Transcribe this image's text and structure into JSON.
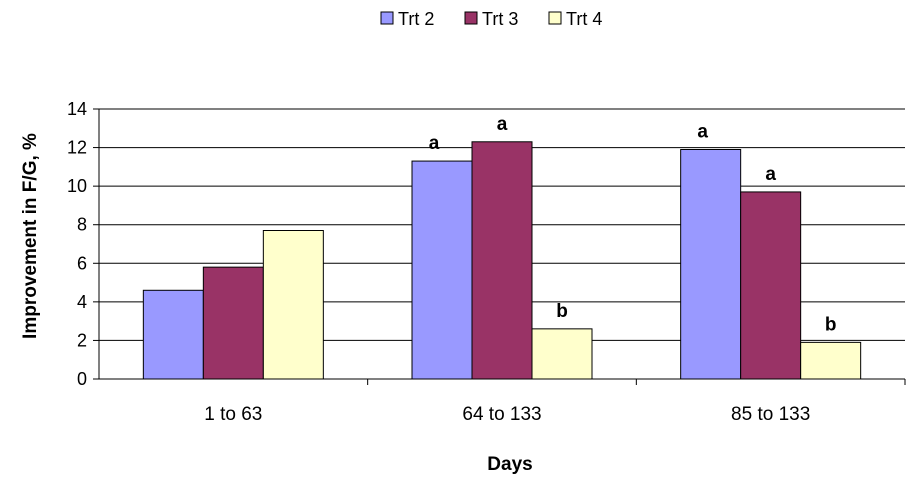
{
  "chart_data": {
    "type": "bar",
    "title": "",
    "xlabel": "Days",
    "ylabel": "Improvement in F/G, %",
    "categories": [
      "1 to 63",
      "64 to 133",
      "85 to 133"
    ],
    "series": [
      {
        "name": "Trt 2",
        "color": "#9999ff",
        "values": [
          4.6,
          11.3,
          11.9
        ],
        "labels": [
          "",
          "a",
          "a"
        ]
      },
      {
        "name": "Trt 3",
        "color": "#993366",
        "values": [
          5.8,
          12.3,
          9.7
        ],
        "labels": [
          "",
          "a",
          "a"
        ]
      },
      {
        "name": "Trt 4",
        "color": "#ffffcc",
        "values": [
          7.7,
          2.6,
          1.9
        ],
        "labels": [
          "",
          "b",
          "b"
        ]
      }
    ],
    "ylim": [
      0,
      14
    ],
    "yticks": [
      0,
      2,
      4,
      6,
      8,
      10,
      12,
      14
    ],
    "grid": true,
    "legend_position": "top"
  }
}
